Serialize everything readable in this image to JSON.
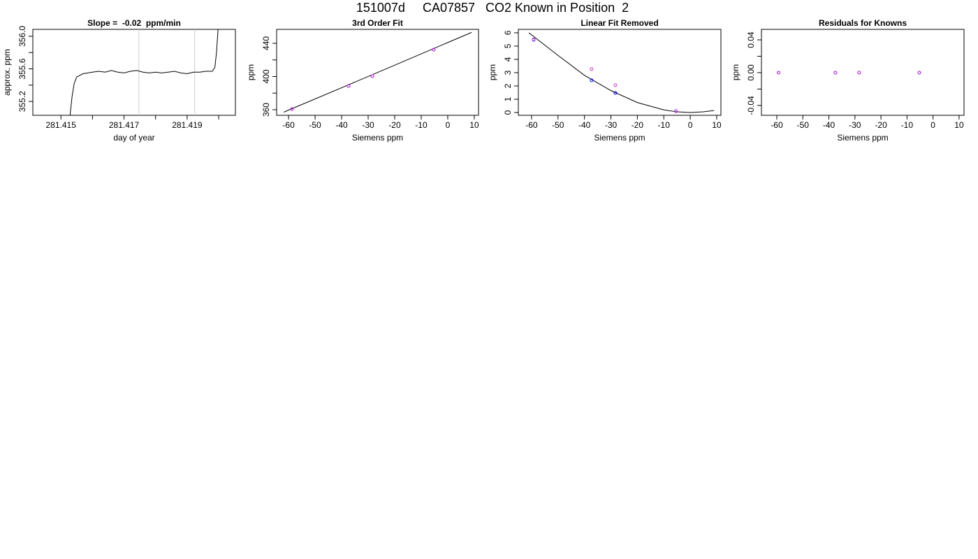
{
  "title": "151007d     CA07857   CO2 Known in Position  2",
  "chart_data": [
    {
      "type": "line",
      "title": "Slope =  -0.02  ppm/min",
      "xlabel": "day of year",
      "ylabel": "approx. ppm",
      "x": [
        281.41529,
        281.41535,
        281.41542,
        281.4155,
        281.4157,
        281.416,
        281.4162,
        281.4164,
        281.4166,
        281.4168,
        281.417,
        281.4172,
        281.4174,
        281.4176,
        281.4178,
        281.418,
        281.4182,
        281.4184,
        281.4186,
        281.4188,
        281.419,
        281.4192,
        281.4194,
        281.4196,
        281.4198,
        281.41988,
        281.41993,
        281.41998
      ],
      "values": [
        355.03,
        355.25,
        355.42,
        355.5,
        355.54,
        355.56,
        355.57,
        355.56,
        355.58,
        355.56,
        355.55,
        355.57,
        355.58,
        355.56,
        355.55,
        355.56,
        355.55,
        355.56,
        355.57,
        355.55,
        355.54,
        355.56,
        355.56,
        355.57,
        355.57,
        355.62,
        355.8,
        356.085
      ],
      "color": "#000000",
      "vlines": [
        281.41747,
        281.41924
      ],
      "vline_color": "#cccccc",
      "xlim": [
        281.41411,
        281.42053
      ],
      "ylim": [
        355.03,
        356.085
      ],
      "xticks": [
        281.415,
        281.417,
        281.419
      ],
      "xminor": [
        281.416,
        281.418,
        281.42
      ],
      "yticks": [
        355.2,
        355.6,
        {
          "value": 356.0,
          "label": "356.0"
        }
      ],
      "yminor": [
        355.4,
        355.8
      ]
    },
    {
      "type": "scatter",
      "title": "3rd Order Fit",
      "xlabel": "Siemens ppm",
      "ylabel": "ppm",
      "series": [
        {
          "color": "#0000ff",
          "x": [
            -58.7,
            -37.4,
            -28.4,
            -5.3
          ],
          "values": [
            360.8,
            388.6,
            400.4,
            432.4
          ]
        },
        {
          "color": "#cc33cc",
          "x": [
            -58.7,
            -37.4,
            -28.4,
            -5.3
          ],
          "values": [
            360.8,
            388.6,
            400.4,
            432.4
          ]
        }
      ],
      "fit": {
        "color": "#000000",
        "x": [
          -61.8,
          -40,
          -20,
          0,
          9.0
        ],
        "values": [
          357.1,
          386.5,
          413.6,
          440.9,
          453.1
        ]
      },
      "xlim": [
        -64.5,
        11.6
      ],
      "ylim": [
        353.3,
        456.8
      ],
      "xticks": [
        -60,
        -50,
        -40,
        -30,
        -20,
        -10,
        0,
        10
      ],
      "yticks": [
        360,
        400,
        440
      ],
      "yminor": [
        380,
        420
      ]
    },
    {
      "type": "scatter",
      "title": "Linear Fit Removed",
      "xlabel": "Siemens ppm",
      "ylabel": "ppm",
      "series": [
        {
          "color": "#0000ff",
          "x": [
            -59.2,
            -37.3,
            -28.3,
            -5.4
          ],
          "values": [
            5.47,
            2.42,
            1.47,
            0.1
          ]
        },
        {
          "color": "#cc33cc",
          "x": [
            -59.2,
            -37.3,
            -28.3,
            -5.4
          ],
          "values": [
            5.5,
            3.26,
            2.05,
            0.1
          ]
        }
      ],
      "fit": {
        "color": "#000000",
        "x": [
          -61,
          -50,
          -40,
          -30,
          -20,
          -10,
          -5,
          0,
          5,
          9
        ],
        "values": [
          6.0,
          4.3,
          2.8,
          1.65,
          0.75,
          0.2,
          0.05,
          0.0,
          0.05,
          0.15
        ]
      },
      "xlim": [
        -65.0,
        11.6
      ],
      "ylim": [
        -0.21,
        6.26
      ],
      "xticks": [
        -60,
        -50,
        -40,
        -30,
        -20,
        -10,
        0,
        10
      ],
      "yticks": [
        0,
        1,
        2,
        3,
        4,
        5,
        6
      ]
    },
    {
      "type": "scatter",
      "title": "Residuals for Knowns",
      "xlabel": "Siemens ppm",
      "ylabel": "ppm",
      "series": [
        {
          "color": "#0000ff",
          "x": [
            -59.3,
            -37.5,
            -28.4,
            -5.3
          ],
          "values": [
            0,
            0,
            0,
            0
          ]
        },
        {
          "color": "#cc33cc",
          "x": [
            -59.3,
            -37.5,
            -28.4,
            -5.3
          ],
          "values": [
            0,
            0,
            0,
            0
          ]
        }
      ],
      "xlim": [
        -65.9,
        11.9
      ],
      "ylim": [
        -0.052,
        0.0528
      ],
      "xticks": [
        -60,
        -50,
        -40,
        -30,
        -20,
        -10,
        0,
        10
      ],
      "yticks": [
        -0.04,
        {
          "value": 0,
          "label": "0.00"
        },
        0.04
      ],
      "yminor": [
        -0.02,
        0.02
      ]
    }
  ]
}
